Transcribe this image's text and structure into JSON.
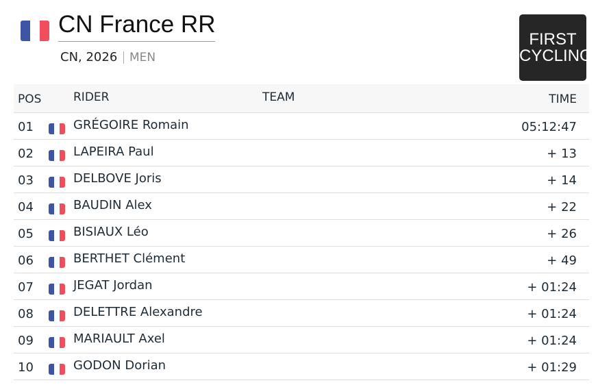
{
  "header": {
    "title": "CN France RR",
    "subtitle": "CN, 2026",
    "category": "MEN"
  },
  "logo": {
    "line1": "FIRST",
    "line2": "CYCLING"
  },
  "table": {
    "columns": [
      "POS",
      "RIDER",
      "TEAM",
      "TIME"
    ],
    "rows": [
      {
        "pos": "01",
        "rider": "GRÉGOIRE Romain",
        "time": "05:12:47"
      },
      {
        "pos": "02",
        "rider": "LAPEIRA Paul",
        "time": "+ 13"
      },
      {
        "pos": "03",
        "rider": "DELBOVE Joris",
        "time": "+ 14"
      },
      {
        "pos": "04",
        "rider": "BAUDIN Alex",
        "time": "+ 22"
      },
      {
        "pos": "05",
        "rider": "BISIAUX Léo",
        "time": "+ 26"
      },
      {
        "pos": "06",
        "rider": "BERTHET Clément",
        "time": "+ 49"
      },
      {
        "pos": "07",
        "rider": "JEGAT Jordan",
        "time": "+ 01:24"
      },
      {
        "pos": "08",
        "rider": "DELETTRE Alexandre",
        "time": "+ 01:24"
      },
      {
        "pos": "09",
        "rider": "MARIAULT Axel",
        "time": "+ 01:24"
      },
      {
        "pos": "10",
        "rider": "GODON Dorian",
        "time": "+ 01:29"
      }
    ]
  }
}
